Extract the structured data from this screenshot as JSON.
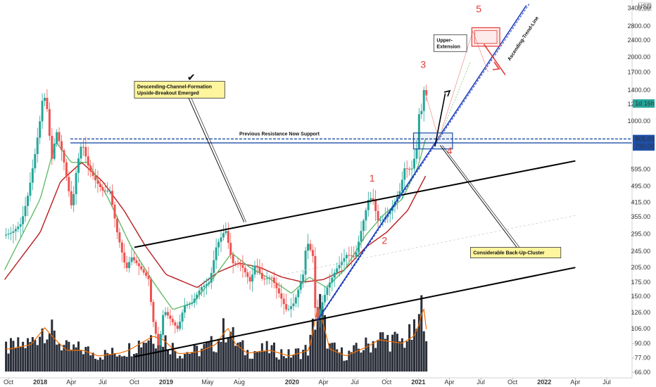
{
  "chart_data": {
    "type": "candlestick",
    "y_scale": "log",
    "ylim": [
      64,
      3600
    ],
    "y_ticks": [
      "3400.00",
      "2800.00",
      "2400.00",
      "2000.00",
      "1700.00",
      "1400.00",
      "1200.00",
      "1000.00",
      "805.00",
      "790.00",
      "595.00",
      "495.00",
      "415.00",
      "355.00",
      "295.00",
      "245.00",
      "205.00",
      "175.00",
      "150.00",
      "126.00",
      "106.00",
      "90.00",
      "77.00",
      "66.00"
    ],
    "y_tick_values": [
      3400,
      2800,
      2400,
      2000,
      1700,
      1400,
      1200,
      1000,
      805,
      790,
      595,
      495,
      415,
      355,
      295,
      245,
      205,
      175,
      150,
      126,
      106,
      90,
      77,
      66
    ],
    "currency": "USD",
    "price_badges": [
      {
        "label": "1d 16h",
        "value": 1210,
        "color": "#26a69a"
      },
      {
        "label": "805.00",
        "value": 805,
        "color": "#1e4fa8"
      },
      {
        "label": "790.00",
        "value": 790,
        "color": "#1e4fa8"
      }
    ],
    "x_ticks": [
      "Oct",
      "2018",
      "Apr",
      "Jul",
      "Oct",
      "2019",
      "May",
      "Aug",
      "2020",
      "Apr",
      "Jul",
      "Oct",
      "2021",
      "Apr",
      "Jul",
      "Oct",
      "2022",
      "Apr",
      "Jul"
    ],
    "x_tick_dates": [
      "2017-10-01",
      "2018-01-01",
      "2018-04-01",
      "2018-07-01",
      "2018-10-01",
      "2019-01-01",
      "2019-05-01",
      "2019-08-01",
      "2020-01-01",
      "2020-04-01",
      "2020-07-01",
      "2020-10-01",
      "2021-01-01",
      "2021-04-01",
      "2021-07-01",
      "2021-10-01",
      "2022-01-01",
      "2022-04-01",
      "2022-07-01"
    ],
    "price_path": [
      [
        "2017-09-20",
        290
      ],
      [
        "2017-10-15",
        300
      ],
      [
        "2017-11-10",
        330
      ],
      [
        "2017-12-01",
        460
      ],
      [
        "2017-12-20",
        700
      ],
      [
        "2018-01-05",
        1050
      ],
      [
        "2018-01-13",
        1380
      ],
      [
        "2018-01-25",
        1120
      ],
      [
        "2018-02-06",
        650
      ],
      [
        "2018-02-20",
        900
      ],
      [
        "2018-03-10",
        700
      ],
      [
        "2018-03-25",
        500
      ],
      [
        "2018-04-06",
        385
      ],
      [
        "2018-04-20",
        610
      ],
      [
        "2018-05-05",
        800
      ],
      [
        "2018-05-25",
        600
      ],
      [
        "2018-06-15",
        520
      ],
      [
        "2018-07-05",
        470
      ],
      [
        "2018-07-25",
        470
      ],
      [
        "2018-08-15",
        300
      ],
      [
        "2018-09-10",
        200
      ],
      [
        "2018-09-25",
        230
      ],
      [
        "2018-10-20",
        205
      ],
      [
        "2018-11-15",
        180
      ],
      [
        "2018-11-25",
        120
      ],
      [
        "2018-12-14",
        85
      ],
      [
        "2018-12-28",
        130
      ],
      [
        "2019-01-20",
        115
      ],
      [
        "2019-02-07",
        105
      ],
      [
        "2019-02-25",
        135
      ],
      [
        "2019-03-20",
        140
      ],
      [
        "2019-04-15",
        165
      ],
      [
        "2019-05-10",
        175
      ],
      [
        "2019-05-30",
        260
      ],
      [
        "2019-06-25",
        310
      ],
      [
        "2019-07-15",
        215
      ],
      [
        "2019-08-10",
        210
      ],
      [
        "2019-09-05",
        175
      ],
      [
        "2019-09-20",
        215
      ],
      [
        "2019-10-10",
        180
      ],
      [
        "2019-11-05",
        185
      ],
      [
        "2019-12-01",
        150
      ],
      [
        "2019-12-20",
        128
      ],
      [
        "2020-01-10",
        140
      ],
      [
        "2020-02-05",
        190
      ],
      [
        "2020-02-15",
        275
      ],
      [
        "2020-03-05",
        230
      ],
      [
        "2020-03-13",
        110
      ],
      [
        "2020-03-25",
        130
      ],
      [
        "2020-04-15",
        165
      ],
      [
        "2020-05-10",
        200
      ],
      [
        "2020-06-10",
        235
      ],
      [
        "2020-07-05",
        230
      ],
      [
        "2020-07-25",
        320
      ],
      [
        "2020-08-14",
        440
      ],
      [
        "2020-08-30",
        420
      ],
      [
        "2020-09-05",
        340
      ],
      [
        "2020-09-25",
        345
      ],
      [
        "2020-10-15",
        380
      ],
      [
        "2020-11-10",
        460
      ],
      [
        "2020-11-25",
        600
      ],
      [
        "2020-12-15",
        590
      ],
      [
        "2020-12-30",
        740
      ],
      [
        "2021-01-08",
        1200
      ],
      [
        "2021-01-14",
        1100
      ],
      [
        "2021-01-19",
        1420
      ],
      [
        "2021-01-24",
        1320
      ]
    ],
    "volume_path": [
      [
        "2017-10-01",
        0.32
      ],
      [
        "2017-12-01",
        0.38
      ],
      [
        "2018-01-10",
        0.62
      ],
      [
        "2018-02-10",
        0.45
      ],
      [
        "2018-03-15",
        0.3
      ],
      [
        "2018-05-01",
        0.3
      ],
      [
        "2018-06-15",
        0.22
      ],
      [
        "2018-08-15",
        0.26
      ],
      [
        "2018-09-10",
        0.3
      ],
      [
        "2018-11-20",
        0.5
      ],
      [
        "2018-12-20",
        0.45
      ],
      [
        "2019-02-01",
        0.25
      ],
      [
        "2019-04-01",
        0.28
      ],
      [
        "2019-05-20",
        0.38
      ],
      [
        "2019-06-25",
        0.62
      ],
      [
        "2019-07-15",
        0.4
      ],
      [
        "2019-08-20",
        0.26
      ],
      [
        "2019-10-25",
        0.3
      ],
      [
        "2019-12-20",
        0.22
      ],
      [
        "2020-02-15",
        0.3
      ],
      [
        "2020-03-13",
        0.95
      ],
      [
        "2020-04-15",
        0.32
      ],
      [
        "2020-06-01",
        0.22
      ],
      [
        "2020-08-05",
        0.36
      ],
      [
        "2020-09-05",
        0.45
      ],
      [
        "2020-11-10",
        0.4
      ],
      [
        "2020-12-15",
        0.5
      ],
      [
        "2021-01-04",
        0.72
      ],
      [
        "2021-01-10",
        1.0
      ],
      [
        "2021-01-20",
        0.6
      ]
    ],
    "moving_averages": [
      {
        "color": "#b71c1c",
        "path": [
          [
            "2017-09-20",
            180
          ],
          [
            "2018-01-01",
            300
          ],
          [
            "2018-03-01",
            520
          ],
          [
            "2018-05-01",
            640
          ],
          [
            "2018-07-01",
            520
          ],
          [
            "2018-09-01",
            380
          ],
          [
            "2018-11-01",
            260
          ],
          [
            "2019-01-01",
            190
          ],
          [
            "2019-04-01",
            165
          ],
          [
            "2019-06-01",
            195
          ],
          [
            "2019-08-01",
            215
          ],
          [
            "2019-10-01",
            205
          ],
          [
            "2019-12-01",
            185
          ],
          [
            "2020-02-01",
            175
          ],
          [
            "2020-04-01",
            180
          ],
          [
            "2020-06-01",
            200
          ],
          [
            "2020-08-01",
            255
          ],
          [
            "2020-10-01",
            300
          ],
          [
            "2020-12-01",
            380
          ],
          [
            "2021-01-24",
            560
          ]
        ]
      },
      {
        "color": "#66bb6a",
        "path": [
          [
            "2017-09-20",
            200
          ],
          [
            "2018-01-01",
            430
          ],
          [
            "2018-02-15",
            800
          ],
          [
            "2018-04-01",
            640
          ],
          [
            "2018-05-20",
            640
          ],
          [
            "2018-07-15",
            440
          ],
          [
            "2018-09-20",
            260
          ],
          [
            "2018-11-25",
            175
          ],
          [
            "2019-01-20",
            130
          ],
          [
            "2019-03-20",
            140
          ],
          [
            "2019-05-20",
            185
          ],
          [
            "2019-07-10",
            240
          ],
          [
            "2019-09-01",
            205
          ],
          [
            "2019-11-01",
            180
          ],
          [
            "2019-12-30",
            155
          ],
          [
            "2020-02-20",
            185
          ],
          [
            "2020-04-10",
            165
          ],
          [
            "2020-06-01",
            200
          ],
          [
            "2020-08-01",
            290
          ],
          [
            "2020-09-20",
            360
          ],
          [
            "2020-11-15",
            430
          ],
          [
            "2020-12-31",
            610
          ],
          [
            "2021-01-24",
            850
          ]
        ]
      }
    ],
    "volume_ma_color": "#ef6c00",
    "candle_up_color": "#26a69a",
    "candle_down_color": "#ef5350",
    "support_level": {
      "top": 825,
      "bottom": 790,
      "label": "Previous Resistance Now Support",
      "color": "#1e4fa8"
    },
    "channel": {
      "upper": [
        [
          "2018-10-01",
          255
        ],
        [
          "2022-04-01",
          650
        ]
      ],
      "lower": [
        [
          "2018-10-01",
          78
        ],
        [
          "2022-04-01",
          205
        ]
      ],
      "mid": [
        [
          "2019-11-01",
          185
        ],
        [
          "2022-04-01",
          360
        ]
      ]
    },
    "trend_line": {
      "label": "Ascending-Trend-Line",
      "from": [
        "2020-03-13",
        115
      ],
      "to": [
        "2021-11-10",
        3500
      ]
    },
    "wave_labels": [
      {
        "text": "1",
        "x": "2020-08-20",
        "y": 520
      },
      {
        "text": "2",
        "x": "2020-09-25",
        "y": 265
      },
      {
        "text": "3",
        "x": "2021-01-15",
        "y": 1780
      },
      {
        "text": "4",
        "x": "2021-04-01",
        "y": 700
      },
      {
        "text": "5",
        "x": "2021-06-25",
        "y": 3250
      }
    ],
    "annotations": [
      {
        "text": [
          "Descending-Channel-Formation",
          "Upside-Breakout Emerged"
        ],
        "box_date": "2018-10-01",
        "box_value": 1540,
        "pointer": [
          "2019-08-15",
          335
        ]
      },
      {
        "text": [
          "Considerable Back-Up-Cluster"
        ],
        "box_date": "2021-06-01",
        "box_value": 255,
        "pointer": [
          "2021-03-05",
          770
        ]
      },
      {
        "text": [
          "Upper-",
          "Extension"
        ],
        "box_date": "2021-02-15",
        "box_value": 2550,
        "pointer": null
      }
    ],
    "target_box": {
      "from": "2021-06-05",
      "to": "2021-08-25",
      "top": 2750,
      "bottom": 2250
    },
    "check_mark": {
      "text": "✔",
      "x": "2019-03-15",
      "y": 1550
    }
  }
}
